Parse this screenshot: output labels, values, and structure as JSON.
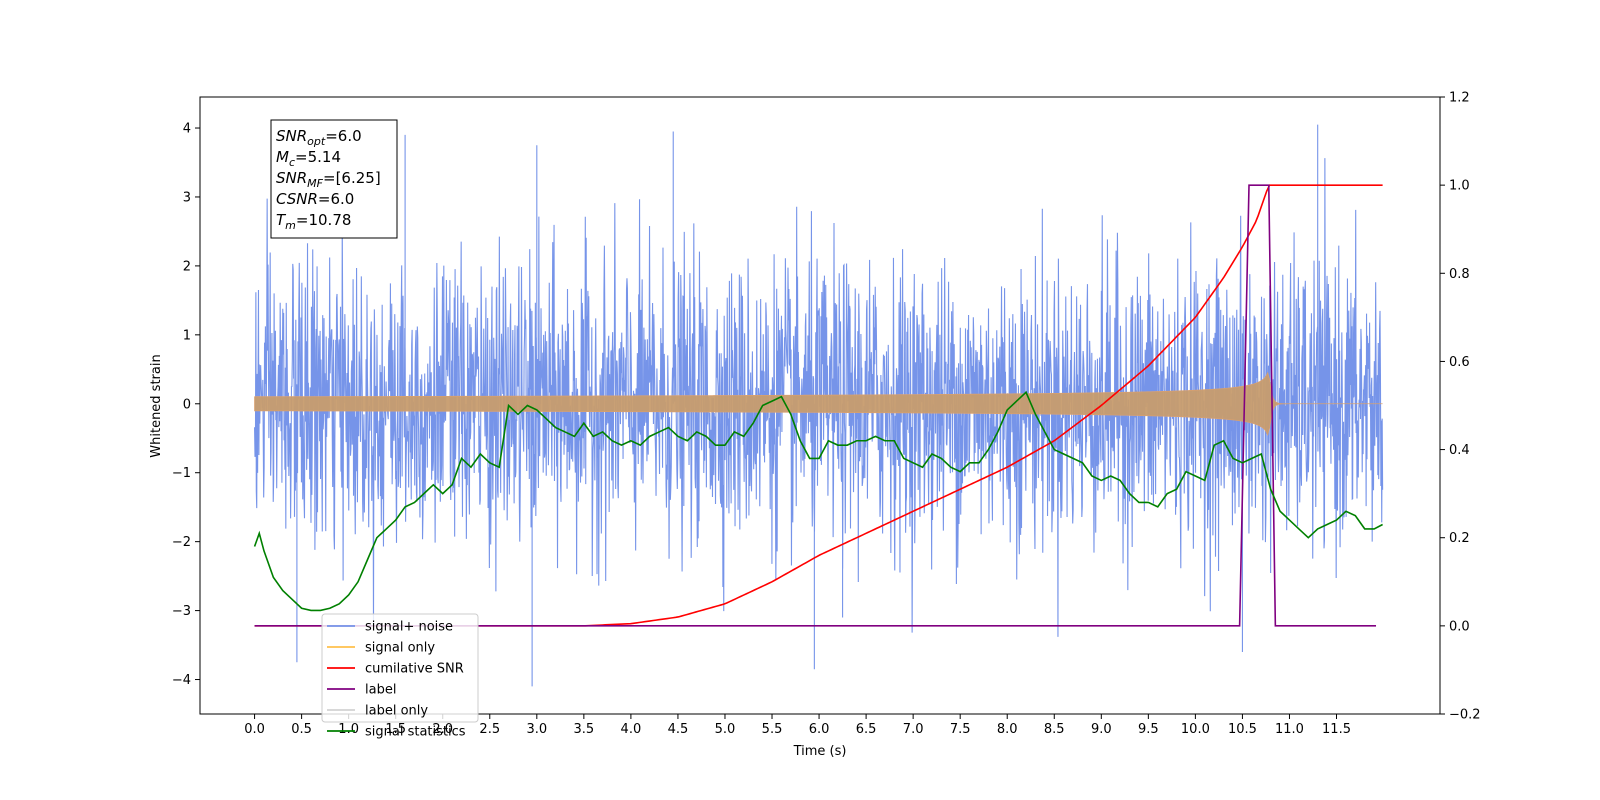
{
  "chart_data": {
    "type": "line",
    "xlabel": "Time (s)",
    "ylabel": "Whitened strain",
    "xlim": [
      -0.58,
      12.6
    ],
    "ylim": [
      -4.5,
      4.45
    ],
    "y2lim": [
      -0.2,
      1.2
    ],
    "xticks": [
      0.0,
      0.5,
      1.0,
      1.5,
      2.0,
      2.5,
      3.0,
      3.5,
      4.0,
      4.5,
      5.0,
      5.5,
      6.0,
      6.5,
      7.0,
      7.5,
      8.0,
      8.5,
      9.0,
      9.5,
      10.0,
      10.5,
      11.0,
      11.5
    ],
    "xtick_labels": [
      "0.0",
      "0.5",
      "1.0",
      "1.5",
      "2.0",
      "2.5",
      "3.0",
      "3.5",
      "4.0",
      "4.5",
      "5.0",
      "5.5",
      "6.0",
      "6.5",
      "7.0",
      "7.5",
      "8.0",
      "8.5",
      "9.0",
      "9.5",
      "10.0",
      "10.5",
      "11.0",
      "11.5"
    ],
    "yticks": [
      -4,
      -3,
      -2,
      -1,
      0,
      1,
      2,
      3,
      4
    ],
    "ytick_labels": [
      "−4",
      "−3",
      "−2",
      "−1",
      "0",
      "1",
      "2",
      "3",
      "4"
    ],
    "y2ticks": [
      -0.2,
      0.0,
      0.2,
      0.4,
      0.6,
      0.8,
      1.0,
      1.2
    ],
    "y2tick_labels": [
      "−0.2",
      "0.0",
      "0.2",
      "0.4",
      "0.6",
      "0.8",
      "1.0",
      "1.2"
    ],
    "grid": false,
    "legend_position": "lower-left",
    "annotation": {
      "lines": [
        {
          "base": "SNR",
          "sub": "opt",
          "rest": "=6.0"
        },
        {
          "base": "M",
          "sub": "c",
          "rest": "=5.14"
        },
        {
          "base": "SNR",
          "sub": "MF",
          "rest": "=[6.25]"
        },
        {
          "base": "CSNR",
          "sub": "",
          "rest": "=6.0"
        },
        {
          "base": "T",
          "sub": "m",
          "rest": "=10.78"
        }
      ]
    },
    "series": [
      {
        "name": "signal+ noise",
        "axis": "left",
        "color": "#6f8ee8",
        "kind": "noise",
        "x_range": [
          0.0,
          11.99
        ],
        "band_1sigma": 1.0,
        "max_spike": 4.05,
        "min_spike": -4.1
      },
      {
        "name": "signal only",
        "axis": "left",
        "color": "#ffa500",
        "kind": "chirp",
        "x_range": [
          0.0,
          11.99
        ],
        "merger_time": 10.78,
        "peak_amplitude": 0.5
      },
      {
        "name": "cumilative SNR",
        "axis": "right",
        "color": "#ff0000",
        "x": [
          0.0,
          3.0,
          3.5,
          4.0,
          4.5,
          5.0,
          5.5,
          6.0,
          6.5,
          7.0,
          7.5,
          8.0,
          8.5,
          9.0,
          9.5,
          10.0,
          10.3,
          10.5,
          10.65,
          10.78,
          11.99
        ],
        "values": [
          0.0,
          0.0,
          0.0,
          0.005,
          0.02,
          0.05,
          0.1,
          0.16,
          0.21,
          0.26,
          0.31,
          0.36,
          0.42,
          0.5,
          0.59,
          0.7,
          0.79,
          0.86,
          0.92,
          1.0,
          1.0
        ]
      },
      {
        "name": "label",
        "axis": "right",
        "color": "#800080",
        "x": [
          0.0,
          10.47,
          10.57,
          10.78,
          10.85,
          11.92
        ],
        "values": [
          0.0,
          0.0,
          1.0,
          1.0,
          0.0,
          0.0
        ]
      },
      {
        "name": "label only",
        "axis": "right",
        "color": "#d3d3d3",
        "x": [],
        "values": []
      },
      {
        "name": "signal statistics",
        "axis": "right",
        "color": "#008000",
        "x": [
          0.0,
          0.05,
          0.1,
          0.2,
          0.3,
          0.4,
          0.5,
          0.6,
          0.7,
          0.8,
          0.9,
          1.0,
          1.1,
          1.2,
          1.3,
          1.4,
          1.5,
          1.6,
          1.7,
          1.8,
          1.9,
          2.0,
          2.1,
          2.2,
          2.3,
          2.4,
          2.5,
          2.6,
          2.7,
          2.8,
          2.9,
          3.0,
          3.1,
          3.2,
          3.3,
          3.4,
          3.5,
          3.6,
          3.7,
          3.8,
          3.9,
          4.0,
          4.1,
          4.2,
          4.3,
          4.4,
          4.5,
          4.6,
          4.7,
          4.8,
          4.9,
          5.0,
          5.1,
          5.2,
          5.3,
          5.4,
          5.5,
          5.6,
          5.7,
          5.8,
          5.9,
          6.0,
          6.1,
          6.2,
          6.3,
          6.4,
          6.5,
          6.6,
          6.7,
          6.8,
          6.9,
          7.0,
          7.1,
          7.2,
          7.3,
          7.4,
          7.5,
          7.6,
          7.7,
          7.8,
          7.9,
          8.0,
          8.1,
          8.2,
          8.3,
          8.4,
          8.5,
          8.6,
          8.7,
          8.8,
          8.9,
          9.0,
          9.1,
          9.2,
          9.3,
          9.4,
          9.5,
          9.6,
          9.7,
          9.8,
          9.9,
          10.0,
          10.1,
          10.2,
          10.3,
          10.4,
          10.5,
          10.6,
          10.7,
          10.8,
          10.9,
          11.0,
          11.1,
          11.2,
          11.3,
          11.4,
          11.5,
          11.6,
          11.7,
          11.8,
          11.9,
          11.99
        ],
        "values": [
          0.18,
          0.21,
          0.17,
          0.11,
          0.08,
          0.06,
          0.04,
          0.035,
          0.035,
          0.04,
          0.05,
          0.07,
          0.1,
          0.15,
          0.2,
          0.22,
          0.24,
          0.27,
          0.28,
          0.3,
          0.32,
          0.3,
          0.32,
          0.38,
          0.36,
          0.39,
          0.37,
          0.36,
          0.5,
          0.48,
          0.5,
          0.49,
          0.47,
          0.45,
          0.44,
          0.43,
          0.46,
          0.43,
          0.44,
          0.42,
          0.41,
          0.42,
          0.41,
          0.43,
          0.44,
          0.45,
          0.43,
          0.42,
          0.44,
          0.43,
          0.41,
          0.41,
          0.44,
          0.43,
          0.46,
          0.5,
          0.51,
          0.52,
          0.48,
          0.42,
          0.38,
          0.38,
          0.42,
          0.41,
          0.41,
          0.42,
          0.42,
          0.43,
          0.42,
          0.42,
          0.38,
          0.37,
          0.36,
          0.39,
          0.38,
          0.36,
          0.35,
          0.37,
          0.37,
          0.4,
          0.44,
          0.49,
          0.51,
          0.53,
          0.48,
          0.44,
          0.4,
          0.39,
          0.38,
          0.37,
          0.34,
          0.33,
          0.34,
          0.33,
          0.3,
          0.28,
          0.28,
          0.27,
          0.3,
          0.31,
          0.35,
          0.34,
          0.33,
          0.41,
          0.42,
          0.38,
          0.37,
          0.38,
          0.39,
          0.31,
          0.26,
          0.24,
          0.22,
          0.2,
          0.22,
          0.23,
          0.24,
          0.26,
          0.25,
          0.22,
          0.22,
          0.23
        ]
      }
    ]
  }
}
